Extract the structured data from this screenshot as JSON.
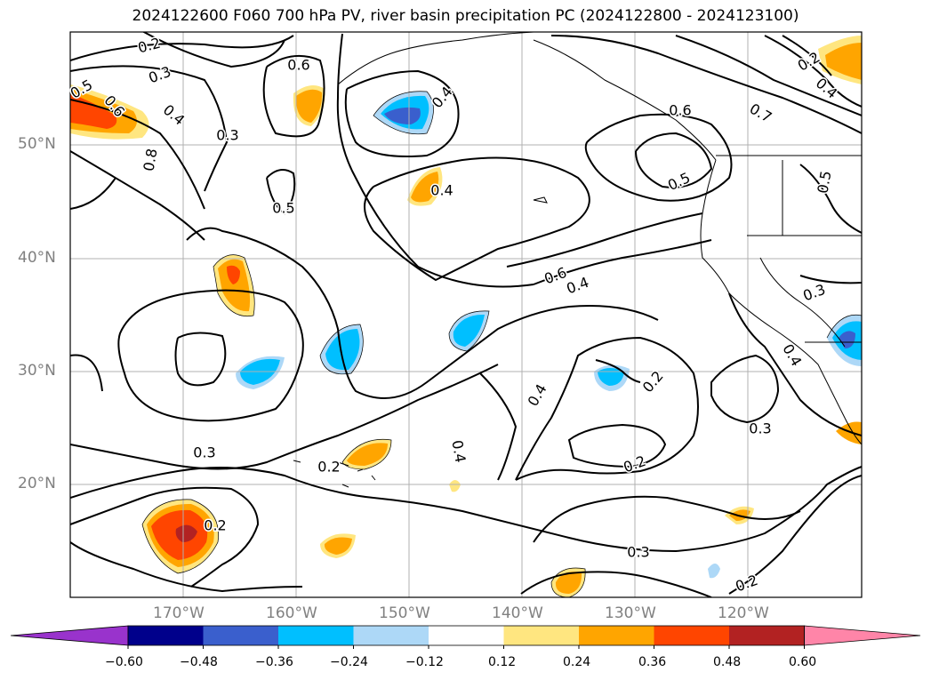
{
  "title": "2024122600 F060 700 hPa PV, river basin precipitation PC (2024122800 - 2024123100)",
  "lat_labels": [
    "50°N",
    "40°N",
    "30°N",
    "20°N"
  ],
  "lon_labels": [
    "170°W",
    "160°W",
    "150°W",
    "140°W",
    "130°W",
    "120°W"
  ],
  "colorbar": {
    "ticks": [
      "−0.60",
      "−0.48",
      "−0.36",
      "−0.24",
      "−0.12",
      "0.12",
      "0.24",
      "0.36",
      "0.48",
      "0.60"
    ],
    "colors": [
      "#9933cc",
      "#00008b",
      "#3a5fcd",
      "#00bfff",
      "#add8f7",
      "#ffffff",
      "#ffe680",
      "#ffa500",
      "#ff4500",
      "#b22222",
      "#ff85a8"
    ]
  },
  "contour_labels": [
    "0.2",
    "0.3",
    "0.5",
    "0.6",
    "0.4",
    "0.3",
    "0.8",
    "0.6",
    "0.4",
    "0.5",
    "0.6",
    "0.5",
    "0.7",
    "0.4",
    "0.6",
    "0.4",
    "0.5",
    "0.4",
    "0.3",
    "0.2",
    "0.3",
    "0.2",
    "0.2",
    "0.4",
    "0.2",
    "0.4",
    "0.2",
    "0.3",
    "0.3",
    "0.4",
    "0.2"
  ]
}
